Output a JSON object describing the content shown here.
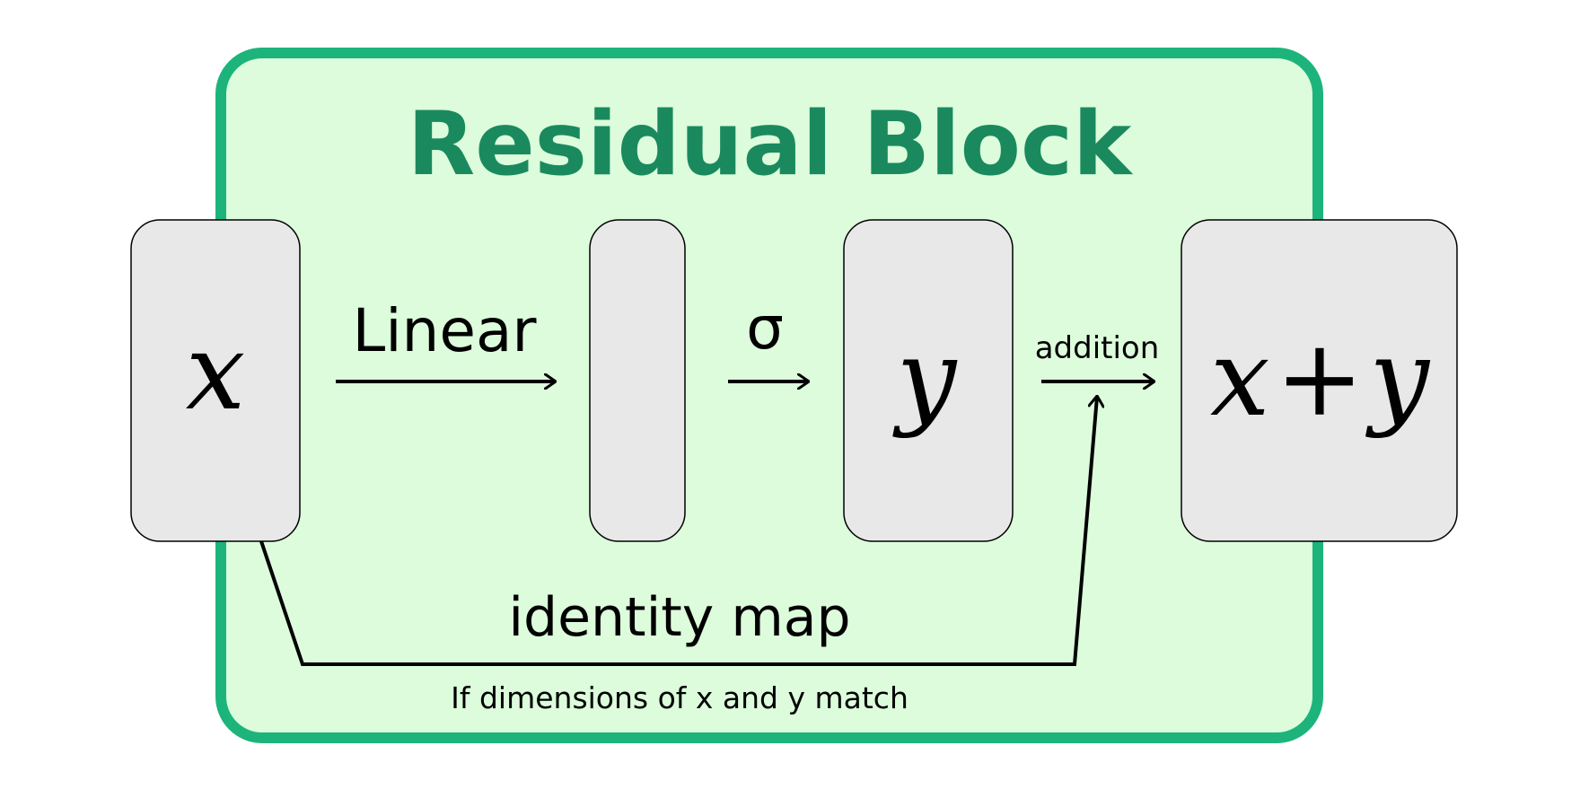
{
  "title": "Residual Block",
  "nodes": {
    "input_label": "x",
    "hidden_label": "",
    "output_y_label": "y",
    "sum_x": "x",
    "sum_plus": "+",
    "sum_y": "y"
  },
  "edges": {
    "linear_label": "Linear",
    "activation_label": "σ",
    "addition_label": "addition",
    "identity_label": "identity map",
    "identity_condition": "If dimensions of x and y match"
  },
  "colors": {
    "block_fill": "#dcfcdc",
    "block_stroke": "#1db47c",
    "title": "#1a8a5e",
    "box_fill": "#e8e8e8",
    "box_stroke": "#000000",
    "text": "#000000"
  }
}
